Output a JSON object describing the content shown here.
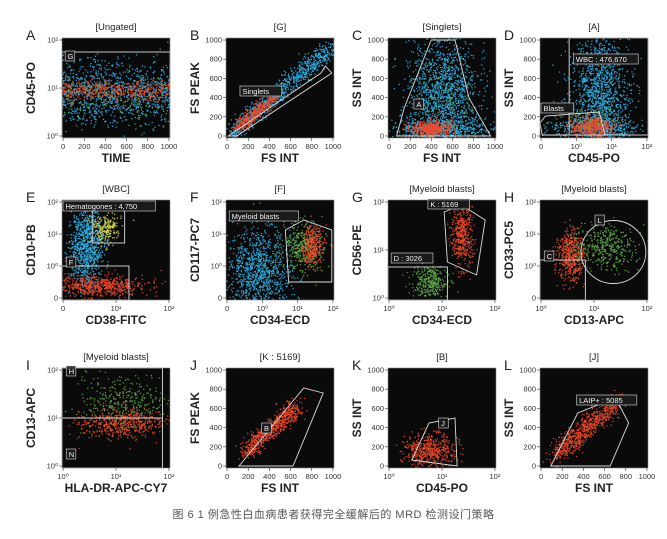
{
  "caption": "图 6 1 例急性白血病患者获得完全缓解后的 MRD 检测设门策略",
  "colors": {
    "background": "#0a0a0a",
    "blue": "#2fb4ea",
    "red": "#f04a2a",
    "green": "#5fae49",
    "yellow": "#d7d34a",
    "gate": "#dddddd"
  },
  "chart_data": [
    {
      "type": "scatter",
      "letter": "A",
      "title": "[Ungated]",
      "xlabel": "TIME",
      "ylabel": "CD45-PO",
      "xscale": "linear",
      "yscale": "log",
      "xticks": [
        "0",
        "200",
        "400",
        "600",
        "800",
        "1000"
      ],
      "yticks": [
        "10⁰",
        "10¹",
        "10²"
      ],
      "gates": [
        {
          "label": "G"
        }
      ]
    },
    {
      "type": "scatter",
      "letter": "B",
      "title": "[G]",
      "xlabel": "FS INT",
      "ylabel": "FS PEAK",
      "xscale": "linear",
      "yscale": "linear",
      "xticks": [
        "0",
        "200",
        "400",
        "600",
        "800",
        "1000"
      ],
      "yticks": [
        "0",
        "200",
        "400",
        "600",
        "800",
        "1000"
      ],
      "gates": [
        {
          "label": "Singlets"
        }
      ]
    },
    {
      "type": "scatter",
      "letter": "C",
      "title": "[Singlets]",
      "xlabel": "FS INT",
      "ylabel": "SS INT",
      "xscale": "linear",
      "yscale": "linear",
      "xticks": [
        "0",
        "200",
        "400",
        "600",
        "800",
        "1000"
      ],
      "yticks": [
        "0",
        "200",
        "400",
        "600",
        "800",
        "1000"
      ],
      "gates": [
        {
          "label": "A"
        }
      ]
    },
    {
      "type": "scatter",
      "letter": "D",
      "title": "[A]",
      "xlabel": "CD45-PO",
      "ylabel": "SS INT",
      "xscale": "log",
      "yscale": "linear",
      "xticks": [
        "0",
        "10⁰",
        "10¹",
        "10²"
      ],
      "yticks": [
        "0",
        "200",
        "400",
        "600",
        "800",
        "1000"
      ],
      "gates": [
        {
          "label": "WBC : 476,670"
        },
        {
          "label": "Blasts"
        }
      ]
    },
    {
      "type": "scatter",
      "letter": "E",
      "title": "[WBC]",
      "xlabel": "CD38-FITC",
      "ylabel": "CD10-PB",
      "xscale": "log",
      "yscale": "log",
      "xticks": [
        "0",
        "10¹",
        "10²"
      ],
      "yticks": [
        "0",
        "10⁰",
        "10¹",
        "10²"
      ],
      "gates": [
        {
          "label": "Hematogones : 4,750"
        },
        {
          "label": "F"
        }
      ]
    },
    {
      "type": "scatter",
      "letter": "F",
      "title": "[F]",
      "xlabel": "CD34-ECD",
      "ylabel": "CD117-PC7",
      "xscale": "log",
      "yscale": "log",
      "xticks": [
        "0",
        "10⁰",
        "10¹",
        "10²"
      ],
      "yticks": [
        "0",
        "10⁰",
        "10¹",
        "10²"
      ],
      "gates": [
        {
          "label": "Myeloid blasts"
        }
      ]
    },
    {
      "type": "scatter",
      "letter": "G",
      "title": "[Myeloid blasts]",
      "xlabel": "CD34-ECD",
      "ylabel": "CD56-PE",
      "xscale": "log",
      "yscale": "log",
      "xticks": [
        "10⁰",
        "10¹",
        "10²"
      ],
      "yticks": [
        "10⁰",
        "10¹",
        "10²"
      ],
      "gates": [
        {
          "label": "K : 5169"
        },
        {
          "label": "D : 3026"
        }
      ]
    },
    {
      "type": "scatter",
      "letter": "H",
      "title": "[Myeloid blasts]",
      "xlabel": "CD13-APC",
      "ylabel": "CD33-PC5",
      "xscale": "log",
      "yscale": "log",
      "xticks": [
        "10⁰",
        "10¹",
        "10²"
      ],
      "yticks": [
        "0",
        "10⁰",
        "10¹",
        "10²"
      ],
      "gates": [
        {
          "label": "L"
        },
        {
          "label": "C"
        }
      ]
    },
    {
      "type": "scatter",
      "letter": "I",
      "title": "[Myeloid blasts]",
      "xlabel": "HLA-DR-APC-CY7",
      "ylabel": "CD13-APC",
      "xscale": "log",
      "yscale": "log",
      "xticks": [
        "10⁰",
        "10¹",
        "10²"
      ],
      "yticks": [
        "10⁰",
        "10¹",
        "10²"
      ],
      "gates": [
        {
          "label": "H"
        },
        {
          "label": "N"
        }
      ]
    },
    {
      "type": "scatter",
      "letter": "J",
      "title": "[K : 5169]",
      "xlabel": "FS INT",
      "ylabel": "FS PEAK",
      "xscale": "linear",
      "yscale": "linear",
      "xticks": [
        "0",
        "200",
        "400",
        "600",
        "800",
        "1000"
      ],
      "yticks": [
        "0",
        "200",
        "400",
        "600",
        "800",
        "1000"
      ],
      "gates": [
        {
          "label": "B"
        }
      ]
    },
    {
      "type": "scatter",
      "letter": "K",
      "title": "[B]",
      "xlabel": "CD45-PO",
      "ylabel": "SS INT",
      "xscale": "log",
      "yscale": "linear",
      "xticks": [
        "10⁰",
        "10¹",
        "10²"
      ],
      "yticks": [
        "0",
        "200",
        "400",
        "600",
        "800",
        "1000"
      ],
      "gates": [
        {
          "label": "J"
        }
      ]
    },
    {
      "type": "scatter",
      "letter": "L",
      "title": "[J]",
      "xlabel": "FS INT",
      "ylabel": "SS INT",
      "xscale": "linear",
      "yscale": "linear",
      "xticks": [
        "0",
        "200",
        "400",
        "600",
        "800",
        "1000"
      ],
      "yticks": [
        "0",
        "200",
        "400",
        "600",
        "800",
        "1000"
      ],
      "gates": [
        {
          "label": "LAIP+ : 5085"
        }
      ]
    }
  ]
}
